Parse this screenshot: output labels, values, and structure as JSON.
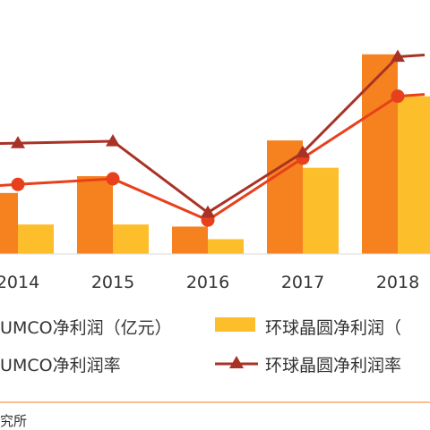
{
  "chart_data": {
    "type": "bar",
    "categories": [
      "2014",
      "2015",
      "2016",
      "2017",
      "2018"
    ],
    "bar_series": [
      {
        "name": "SUMCO净利润（亿元）",
        "values": [
          2.9,
          3.7,
          1.3,
          5.4,
          9.5
        ],
        "color": "#F5821F"
      },
      {
        "name": "环球晶圆净利润（亿元）",
        "values": [
          1.4,
          1.4,
          0.7,
          4.1,
          7.5
        ],
        "color": "#FDBE2C"
      }
    ],
    "line_series": [
      {
        "name": "SUMCO净利润率",
        "values": [
          0.37,
          0.4,
          0.18,
          0.51,
          0.84
        ],
        "color": "#E8401C",
        "marker": "circle"
      },
      {
        "name": "环球晶圆净利润率",
        "values": [
          0.59,
          0.6,
          0.22,
          0.54,
          1.05
        ],
        "color": "#A93226",
        "marker": "triangle"
      }
    ],
    "legend_labels": [
      "SUMCO净利润（亿元）",
      "环球晶圆净利润（",
      "SUMCO净利润率",
      "环球晶圆净利润率"
    ],
    "legend_position": "bottom",
    "grid": false
  },
  "source_text": "究所"
}
